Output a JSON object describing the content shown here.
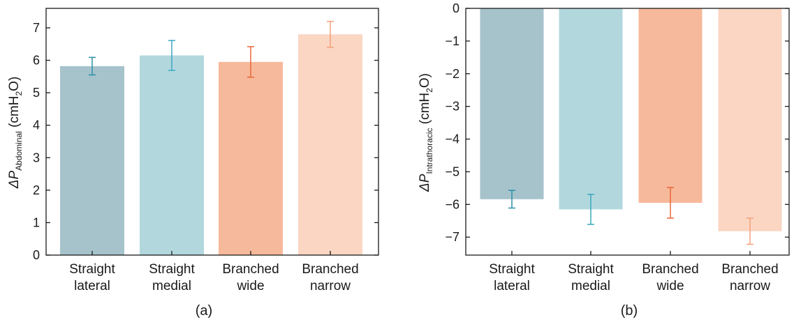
{
  "chart_data": [
    {
      "type": "bar",
      "panel_label": "(a)",
      "categories": [
        {
          "line1": "Straight",
          "line2": "lateral"
        },
        {
          "line1": "Straight",
          "line2": "medial"
        },
        {
          "line1": "Branched",
          "line2": "wide"
        },
        {
          "line1": "Branched",
          "line2": "narrow"
        }
      ],
      "values": [
        5.82,
        6.15,
        5.95,
        6.8
      ],
      "errors": [
        0.27,
        0.46,
        0.47,
        0.4
      ],
      "bar_colors": [
        "#a6c3cc",
        "#b2d8de",
        "#f7b99b",
        "#fad6c3"
      ],
      "error_colors": [
        "#2a90a8",
        "#3aa7bf",
        "#e8663a",
        "#f4a07a"
      ],
      "ylabel": {
        "prefix": "ΔP",
        "sub": "Abdominal",
        "suffix": " (cmH",
        "sub2": "2",
        "end": "O)"
      },
      "ylim": [
        0,
        7.6
      ],
      "yticks": [
        0,
        1,
        2,
        3,
        4,
        5,
        6,
        7
      ],
      "ytick_labels": [
        "0",
        "1",
        "2",
        "3",
        "4",
        "5",
        "6",
        "7"
      ],
      "grid": false
    },
    {
      "type": "bar",
      "panel_label": "(b)",
      "categories": [
        {
          "line1": "Straight",
          "line2": "lateral"
        },
        {
          "line1": "Straight",
          "line2": "medial"
        },
        {
          "line1": "Branched",
          "line2": "wide"
        },
        {
          "line1": "Branched",
          "line2": "narrow"
        }
      ],
      "values": [
        -5.84,
        -6.15,
        -5.95,
        -6.82
      ],
      "errors": [
        0.27,
        0.46,
        0.47,
        0.4
      ],
      "bar_colors": [
        "#a6c3cc",
        "#b2d8de",
        "#f7b99b",
        "#fad6c3"
      ],
      "error_colors": [
        "#2a90a8",
        "#3aa7bf",
        "#e8663a",
        "#f4a07a"
      ],
      "ylabel": {
        "prefix": "ΔP",
        "sub": "Intrathoracic",
        "suffix": " (cmH",
        "sub2": "2",
        "end": "O)"
      },
      "ylim": [
        -7.55,
        0
      ],
      "yticks": [
        0,
        -1,
        -2,
        -3,
        -4,
        -5,
        -6,
        -7
      ],
      "ytick_labels": [
        "0",
        "−1",
        "−2",
        "−3",
        "−4",
        "−5",
        "−6",
        "−7"
      ],
      "grid": false
    }
  ]
}
